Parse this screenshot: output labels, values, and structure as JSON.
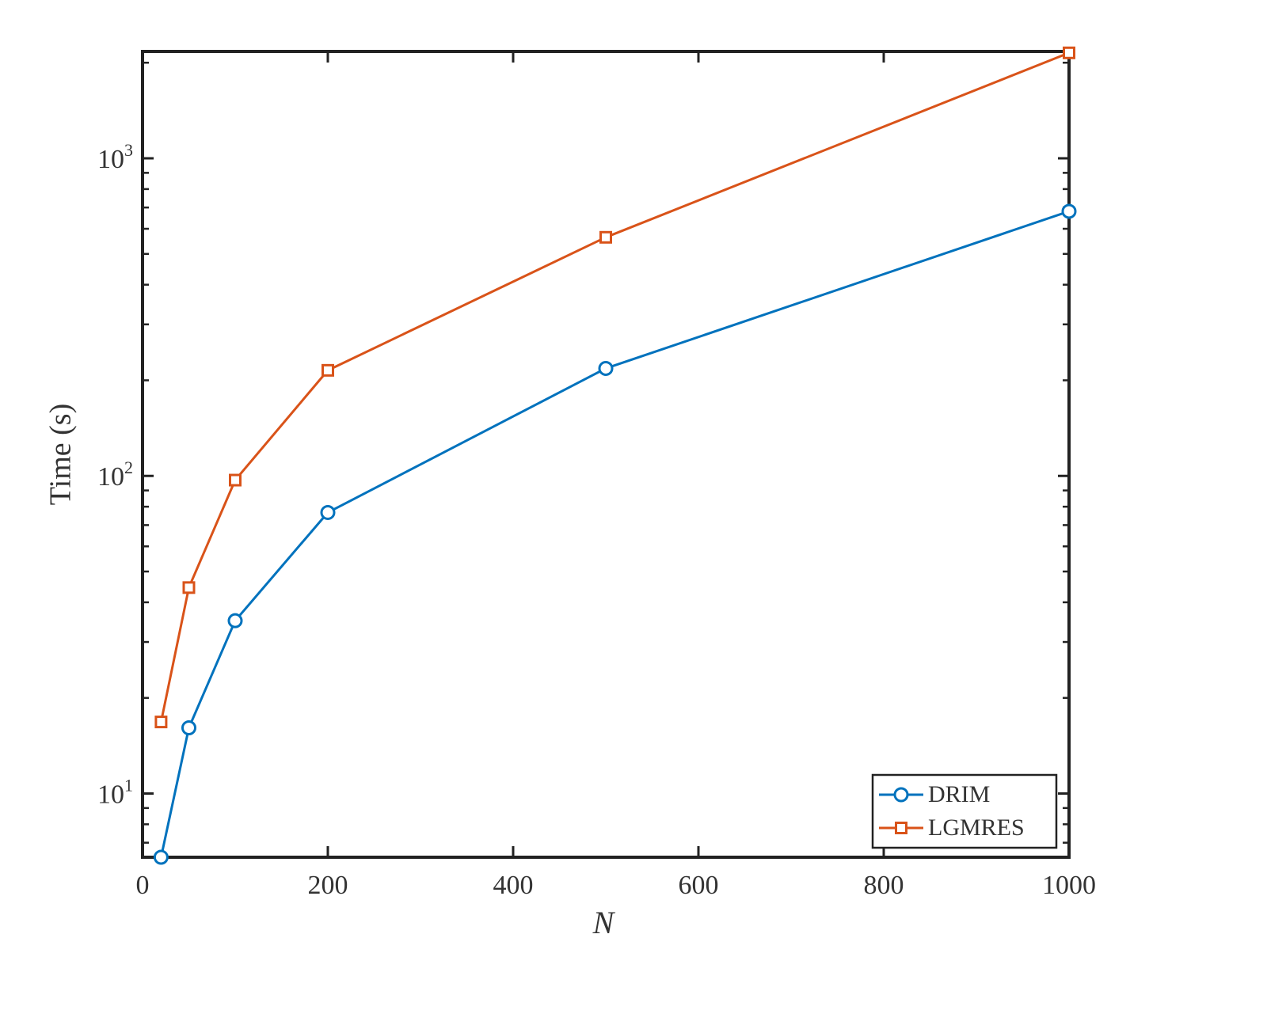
{
  "chart_data": {
    "type": "line",
    "xlabel": "N",
    "ylabel": "Time (s)",
    "x": [
      20,
      50,
      100,
      200,
      500,
      1000
    ],
    "series": [
      {
        "name": "DRIM",
        "color": "#0072bd",
        "marker": "circle",
        "values": [
          6.3,
          16.1,
          35,
          76.7,
          218,
          681
        ]
      },
      {
        "name": "LGMRES",
        "color": "#d95319",
        "marker": "square",
        "values": [
          16.8,
          44.5,
          97,
          215,
          564,
          2148
        ]
      }
    ],
    "xlim": [
      0,
      1000
    ],
    "xticks": [
      0,
      200,
      400,
      600,
      800,
      1000
    ],
    "ylim": [
      6.3,
      2170
    ],
    "yscale": "log",
    "yticks": [
      {
        "value": 10,
        "label": "10^1"
      },
      {
        "value": 100,
        "label": "10^2"
      },
      {
        "value": 1000,
        "label": "10^3"
      }
    ],
    "yminorticks": [
      7,
      8,
      9,
      20,
      30,
      40,
      50,
      60,
      70,
      80,
      90,
      200,
      300,
      400,
      500,
      600,
      700,
      800,
      900,
      2000
    ],
    "legend": "lower right"
  }
}
